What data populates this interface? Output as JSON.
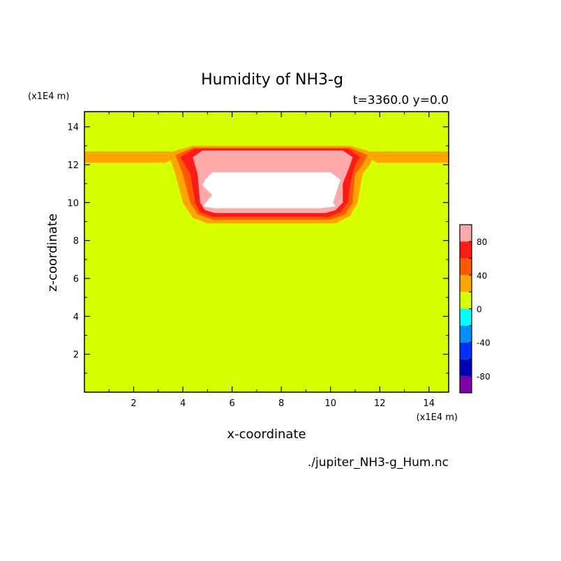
{
  "chart_data": {
    "type": "heatmap",
    "title": "Humidity of NH3-g",
    "subtitle": "t=3360.0 y=0.0",
    "xlabel": "x-coordinate",
    "ylabel": "z-coordinate",
    "x_unit": "(x1E4 m)",
    "y_unit": "(x1E4 m)",
    "xlim": [
      0,
      14.8
    ],
    "ylim": [
      0,
      14.8
    ],
    "x_ticks": [
      2,
      4,
      6,
      8,
      10,
      12,
      14
    ],
    "y_ticks": [
      2,
      4,
      6,
      8,
      10,
      12,
      14
    ],
    "source_file": "./jupiter_NH3-g_Hum.nc",
    "background_level_color": "#d8ff00",
    "colorbar": {
      "levels": [
        -100,
        -80,
        -60,
        -40,
        -20,
        0,
        20,
        40,
        60,
        80,
        100
      ],
      "tick_labels": [
        80,
        40,
        0,
        -40,
        -80
      ],
      "colors": [
        "#7f00aa",
        "#0000b4",
        "#0030ff",
        "#0090ff",
        "#00ffff",
        "#d8ff00",
        "#ffa500",
        "#ff5a00",
        "#ff1a1a",
        "#ffaaaa"
      ],
      "overflow_color": "#ffffff"
    },
    "regions": [
      {
        "level": "20-40",
        "color": "#ffa500",
        "shape": [
          [
            0,
            12.1
          ],
          [
            3.3,
            12.1
          ],
          [
            4.4,
            12.8
          ],
          [
            10.8,
            12.8
          ],
          [
            11.9,
            12.1
          ],
          [
            14.8,
            12.1
          ],
          [
            14.8,
            12.7
          ],
          [
            11.6,
            12.7
          ],
          [
            10.8,
            13.0
          ],
          [
            4.4,
            13.0
          ],
          [
            3.6,
            12.7
          ],
          [
            0,
            12.7
          ]
        ]
      },
      {
        "level": "20-40",
        "color": "#ffa500",
        "shape": [
          [
            3.4,
            12.6
          ],
          [
            4.4,
            13.0
          ],
          [
            10.8,
            13.0
          ],
          [
            11.8,
            12.6
          ],
          [
            11.6,
            12.0
          ],
          [
            11.3,
            11.5
          ],
          [
            11.1,
            10.0
          ],
          [
            10.8,
            9.3
          ],
          [
            10.2,
            8.9
          ],
          [
            5.0,
            8.9
          ],
          [
            4.4,
            9.2
          ],
          [
            4.0,
            10.0
          ],
          [
            3.7,
            11.5
          ]
        ]
      },
      {
        "level": "40-60",
        "color": "#ff5a00",
        "shape": [
          [
            3.7,
            12.5
          ],
          [
            4.4,
            12.9
          ],
          [
            10.8,
            12.9
          ],
          [
            11.5,
            12.5
          ],
          [
            11.3,
            12.0
          ],
          [
            11.0,
            11.5
          ],
          [
            10.9,
            10.0
          ],
          [
            10.6,
            9.4
          ],
          [
            10.0,
            9.1
          ],
          [
            5.2,
            9.1
          ],
          [
            4.6,
            9.4
          ],
          [
            4.3,
            10.0
          ],
          [
            4.0,
            11.5
          ]
        ]
      },
      {
        "level": "60-80",
        "color": "#ff1a1a",
        "shape": [
          [
            3.9,
            12.4
          ],
          [
            4.5,
            12.85
          ],
          [
            10.7,
            12.85
          ],
          [
            11.2,
            12.4
          ],
          [
            11.0,
            12.0
          ],
          [
            10.8,
            11.0
          ],
          [
            10.7,
            10.0
          ],
          [
            10.4,
            9.5
          ],
          [
            9.9,
            9.25
          ],
          [
            5.2,
            9.25
          ],
          [
            4.7,
            9.5
          ],
          [
            4.5,
            10.0
          ],
          [
            4.3,
            11.5
          ]
        ]
      },
      {
        "level": "80-100",
        "color": "#ffaaaa",
        "shape": [
          [
            4.4,
            12.4
          ],
          [
            4.8,
            12.75
          ],
          [
            10.5,
            12.75
          ],
          [
            10.9,
            12.4
          ],
          [
            10.8,
            12.0
          ],
          [
            10.5,
            11.0
          ],
          [
            10.5,
            10.0
          ],
          [
            10.2,
            9.6
          ],
          [
            9.8,
            9.45
          ],
          [
            5.3,
            9.45
          ],
          [
            4.9,
            9.6
          ],
          [
            4.7,
            10.0
          ],
          [
            4.6,
            11.5
          ]
        ]
      },
      {
        "level": ">100",
        "color": "#ffffff",
        "shape": [
          [
            4.9,
            11.2
          ],
          [
            5.2,
            11.6
          ],
          [
            10.0,
            11.6
          ],
          [
            10.4,
            11.2
          ],
          [
            10.1,
            10.0
          ],
          [
            10.2,
            9.8
          ],
          [
            9.6,
            9.7
          ],
          [
            5.3,
            9.7
          ],
          [
            4.8,
            9.8
          ],
          [
            5.2,
            10.4
          ],
          [
            4.8,
            10.9
          ]
        ]
      }
    ]
  },
  "text": {
    "title": "Humidity of NH3-g",
    "subtitle": "t=3360.0 y=0.0",
    "y_unit": "(x1E4 m)",
    "x_unit": "(x1E4 m)",
    "xlabel": "x-coordinate",
    "ylabel": "z-coordinate",
    "source_file": "./jupiter_NH3-g_Hum.nc"
  }
}
